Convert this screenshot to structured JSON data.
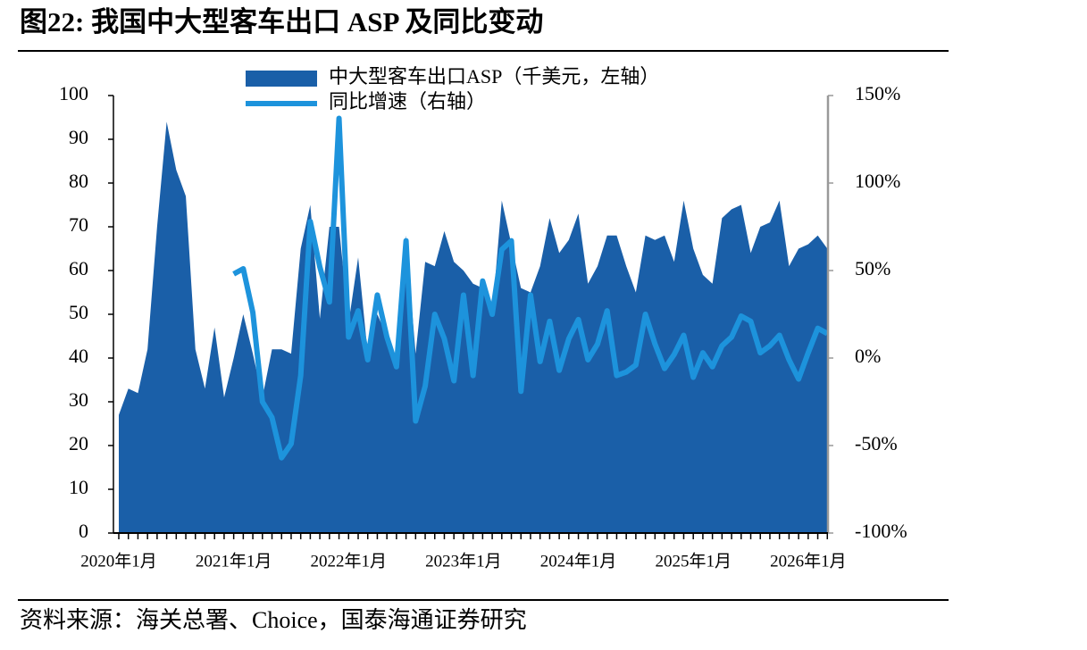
{
  "chart_data": {
    "type": "area-line",
    "title": "图22:  我国中大型客车出口 ASP 及同比变动",
    "source": "资料来源：海关总署、Choice，国泰海通证券研究",
    "categories": [
      "2020年1月",
      null,
      null,
      null,
      null,
      null,
      null,
      null,
      null,
      null,
      null,
      null,
      "2021年1月",
      null,
      null,
      null,
      null,
      null,
      null,
      null,
      null,
      null,
      null,
      null,
      "2022年1月",
      null,
      null,
      null,
      null,
      null,
      null,
      null,
      null,
      null,
      null,
      null,
      "2023年1月",
      null,
      null,
      null,
      null,
      null,
      null,
      null,
      null,
      null,
      null,
      null,
      "2024年1月",
      null,
      null,
      null,
      null,
      null,
      null,
      null,
      null,
      null,
      null,
      null,
      "2025年1月",
      null,
      null,
      null,
      null,
      null,
      null,
      null,
      null,
      null,
      null,
      null,
      "2026年1月",
      null,
      null
    ],
    "series": [
      {
        "name": "中大型客车出口ASP（千美元，左轴）",
        "color": "#1a5fa8",
        "kind": "area",
        "values": [
          27,
          33,
          32,
          42,
          70,
          94,
          83,
          77,
          42,
          33,
          47,
          31,
          40,
          50,
          41,
          31,
          42,
          42,
          41,
          65,
          75,
          49,
          70,
          70,
          48,
          63,
          41,
          50,
          45,
          40,
          68,
          41,
          62,
          61,
          69,
          62,
          60,
          57,
          56,
          50,
          76,
          66,
          56,
          55,
          61,
          72,
          64,
          67,
          73,
          57,
          61,
          68,
          68,
          61,
          55,
          68,
          67,
          68,
          62,
          76,
          65,
          59,
          57,
          72,
          74,
          75,
          64,
          70,
          71,
          76,
          61,
          65,
          66,
          68,
          65
        ]
      },
      {
        "name": "同比增速（右轴）",
        "color": "#1d93dc",
        "kind": "line",
        "axis": "y2",
        "values": [
          null,
          null,
          null,
          null,
          null,
          null,
          null,
          null,
          null,
          null,
          null,
          null,
          48,
          51,
          26,
          -25,
          -34,
          -57,
          -49,
          -10,
          78,
          52,
          32,
          137,
          12,
          27,
          -1,
          36,
          12,
          -5,
          67,
          -36,
          -16,
          25,
          11,
          -13,
          36,
          -10,
          44,
          25,
          62,
          67,
          -19,
          36,
          -2,
          21,
          -7,
          11,
          22,
          -1,
          8,
          27,
          -10,
          -8,
          -4,
          25,
          8,
          -6,
          2,
          13,
          -11,
          3,
          -5,
          7,
          12,
          24,
          21,
          3,
          7,
          13,
          -1,
          -12,
          3,
          17,
          14
        ]
      }
    ],
    "ylim": [
      0,
      100
    ],
    "yticks": [
      0,
      10,
      20,
      30,
      40,
      50,
      60,
      70,
      80,
      90,
      100
    ],
    "y2lim": [
      -100,
      150
    ],
    "y2ticks": [
      {
        "value": -100,
        "label": "-100%"
      },
      {
        "value": -50,
        "label": "-50%"
      },
      {
        "value": 0,
        "label": "0%"
      },
      {
        "value": 50,
        "label": "50%"
      },
      {
        "value": 100,
        "label": "100%"
      },
      {
        "value": 150,
        "label": "150%"
      }
    ]
  }
}
